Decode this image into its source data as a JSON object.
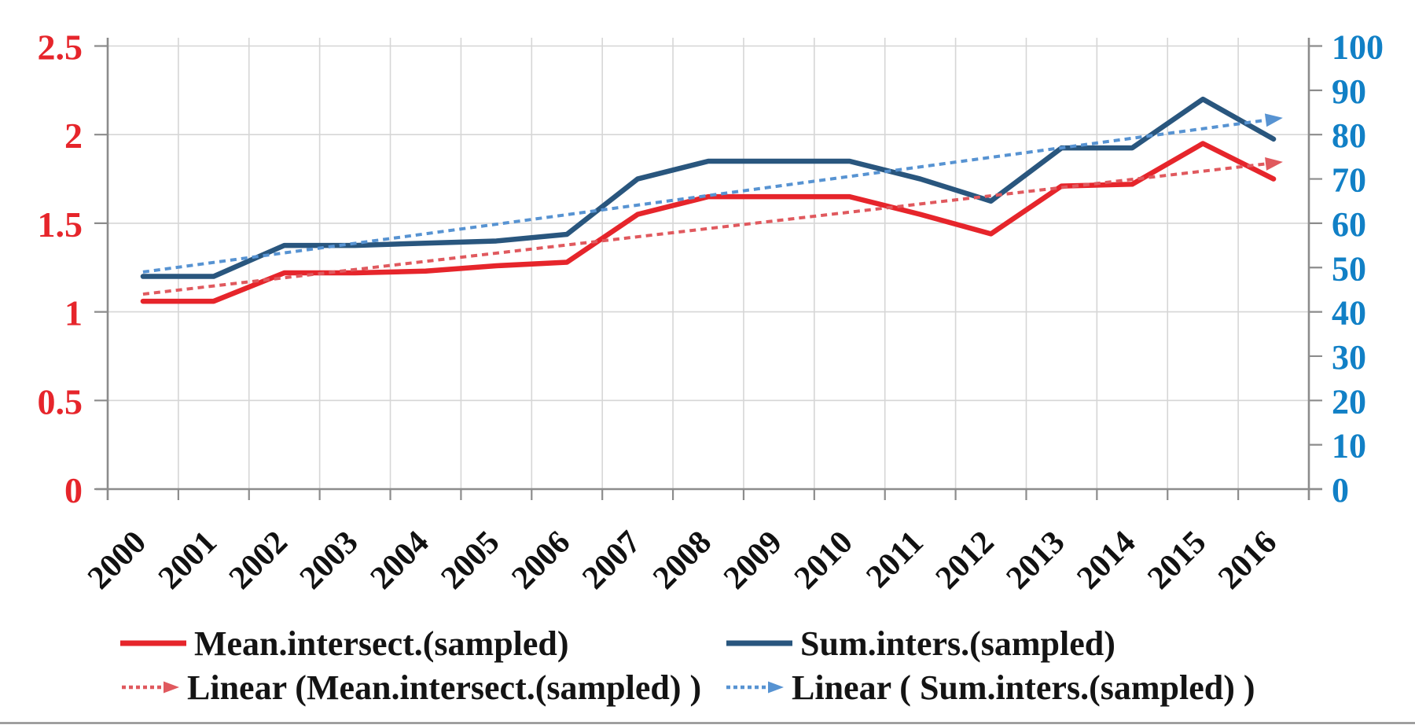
{
  "page": {
    "background": "#ffffff",
    "bottom_rule_color": "#8f8f8f"
  },
  "chart_data": {
    "type": "line",
    "title": "",
    "x": [
      2000,
      2001,
      2002,
      2003,
      2004,
      2005,
      2006,
      2007,
      2008,
      2009,
      2010,
      2011,
      2012,
      2013,
      2014,
      2015,
      2016
    ],
    "x_tick_labels": [
      "2000",
      "2001",
      "2002",
      "2003",
      "2004",
      "2005",
      "2006",
      "2007",
      "2008",
      "2009",
      "2010",
      "2011",
      "2012",
      "2013",
      "2014",
      "2015",
      "2016"
    ],
    "left_axis": {
      "range": [
        0,
        2.5
      ],
      "tick_values": [
        0,
        0.5,
        1,
        1.5,
        2,
        2.5
      ],
      "tick_labels": [
        "0",
        "0.5",
        "1",
        "1.5",
        "2",
        "2.5"
      ],
      "label_color": "#e6252b"
    },
    "right_axis": {
      "range": [
        0,
        100
      ],
      "tick_values": [
        0,
        10,
        20,
        30,
        40,
        50,
        60,
        70,
        80,
        90,
        100
      ],
      "tick_labels": [
        "0",
        "10",
        "20",
        "30",
        "40",
        "50",
        "60",
        "70",
        "80",
        "90",
        "100"
      ],
      "label_color": "#1180c6"
    },
    "grid": true,
    "legend_position": "bottom",
    "grid_color": "#d6d6d6",
    "axis_color": "#8c8c8c",
    "series": [
      {
        "name": "Mean.intersect.(sampled)",
        "kind": "line",
        "axis": "left",
        "color": "#e6252b",
        "dash": "solid",
        "values": [
          1.06,
          1.06,
          1.22,
          1.22,
          1.23,
          1.26,
          1.28,
          1.55,
          1.65,
          1.65,
          1.65,
          1.55,
          1.44,
          1.71,
          1.72,
          1.95,
          1.75
        ]
      },
      {
        "name": "Sum.inters.(sampled)",
        "kind": "line",
        "axis": "right",
        "color": "#29567e",
        "dash": "solid",
        "values": [
          48,
          48,
          55,
          55,
          55.5,
          56,
          57.5,
          70,
          74,
          74,
          74,
          70,
          65,
          77,
          77,
          88,
          79
        ]
      },
      {
        "name": "Linear (Mean.intersect.(sampled) )",
        "kind": "trendline",
        "axis": "left",
        "color": "#e0595e",
        "dash": "dashed",
        "arrow": true,
        "start": 1.1,
        "end": 1.84
      },
      {
        "name": "Linear ( Sum.inters.(sampled) )",
        "kind": "trendline",
        "axis": "right",
        "color": "#5793d2",
        "dash": "dashed",
        "arrow": true,
        "start": 49,
        "end": 83.5
      }
    ]
  }
}
